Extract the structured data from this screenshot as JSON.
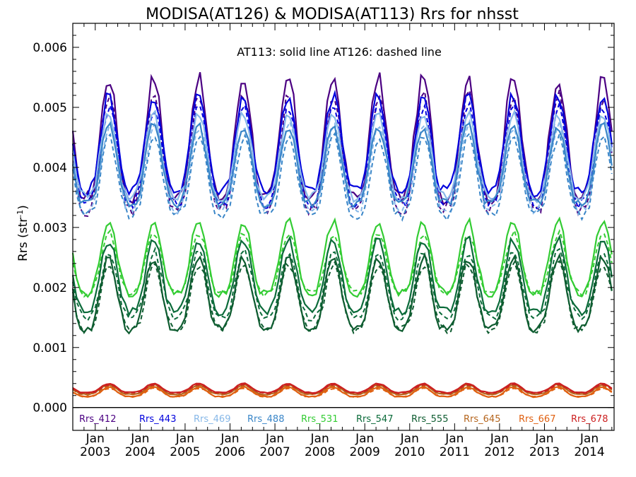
{
  "chart_data": {
    "type": "line",
    "title": "MODISA(AT126) & MODISA(AT113)  Rrs for nhsst",
    "annotation": "AT113: solid line   AT126: dashed line",
    "ylabel_main": "Rrs (str",
    "ylabel_sup": "-1",
    "ylabel_end": ")",
    "xlim": [
      2002.5,
      2014.55
    ],
    "ylim": [
      -0.00038,
      0.0064
    ],
    "yticks": [
      0.0,
      0.001,
      0.002,
      0.003,
      0.004,
      0.005,
      0.006
    ],
    "ytick_labels": [
      "0.000",
      "0.001",
      "0.002",
      "0.003",
      "0.004",
      "0.005",
      "0.006"
    ],
    "xticks": [
      {
        "month": "Jan",
        "year": "2003",
        "x": 2003
      },
      {
        "month": "Jan",
        "year": "2004",
        "x": 2004
      },
      {
        "month": "Jan",
        "year": "2005",
        "x": 2005
      },
      {
        "month": "Jan",
        "year": "2006",
        "x": 2006
      },
      {
        "month": "Jan",
        "year": "2007",
        "x": 2007
      },
      {
        "month": "Jan",
        "year": "2008",
        "x": 2008
      },
      {
        "month": "Jan",
        "year": "2009",
        "x": 2009
      },
      {
        "month": "Jan",
        "year": "2010",
        "x": 2010
      },
      {
        "month": "Jan",
        "year": "2011",
        "x": 2011
      },
      {
        "month": "Jan",
        "year": "2012",
        "x": 2012
      },
      {
        "month": "Jan",
        "year": "2013",
        "x": 2013
      },
      {
        "month": "Jan",
        "year": "2014",
        "x": 2014
      }
    ],
    "line_styles": {
      "solid": "AT113",
      "dashed": "AT126"
    },
    "series": [
      {
        "name": "Rrs_412",
        "color": "#4B0082",
        "trough": 0.0035,
        "peak": 0.0055,
        "dashed_trough": 0.0033,
        "dashed_peak": 0.0052
      },
      {
        "name": "Rrs_443",
        "color": "#0000DD",
        "trough": 0.0036,
        "peak": 0.0052,
        "dashed_trough": 0.0034,
        "dashed_peak": 0.005
      },
      {
        "name": "Rrs_469",
        "color": "#87B8E8",
        "trough": 0.0035,
        "peak": 0.0049,
        "dashed_trough": 0.0033,
        "dashed_peak": 0.0047
      },
      {
        "name": "Rrs_488",
        "color": "#3A86C8",
        "trough": 0.0034,
        "peak": 0.0047,
        "dashed_trough": 0.0032,
        "dashed_peak": 0.0045
      },
      {
        "name": "Rrs_531",
        "color": "#33CC33",
        "trough": 0.0019,
        "peak": 0.0031,
        "dashed_trough": 0.0019,
        "dashed_peak": 0.0029
      },
      {
        "name": "Rrs_547",
        "color": "#0B6B3A",
        "trough": 0.0016,
        "peak": 0.0028,
        "dashed_trough": 0.0015,
        "dashed_peak": 0.0026
      },
      {
        "name": "Rrs_555",
        "color": "#0E5C30",
        "trough": 0.0013,
        "peak": 0.0025,
        "dashed_trough": 0.0013,
        "dashed_peak": 0.0024
      },
      {
        "name": "Rrs_645",
        "color": "#B5651D",
        "trough": 0.00022,
        "peak": 0.00038,
        "dashed_trough": 0.00022,
        "dashed_peak": 0.00036
      },
      {
        "name": "Rrs_667",
        "color": "#E06010",
        "trough": 0.00018,
        "peak": 0.00034,
        "dashed_trough": 0.00018,
        "dashed_peak": 0.00032
      },
      {
        "name": "Rrs_678",
        "color": "#CC2020",
        "trough": 0.00025,
        "peak": 0.0004,
        "dashed_trough": 0.00024,
        "dashed_peak": 0.00038
      }
    ],
    "grid": false,
    "legend_placement": "bottom inside plot"
  }
}
